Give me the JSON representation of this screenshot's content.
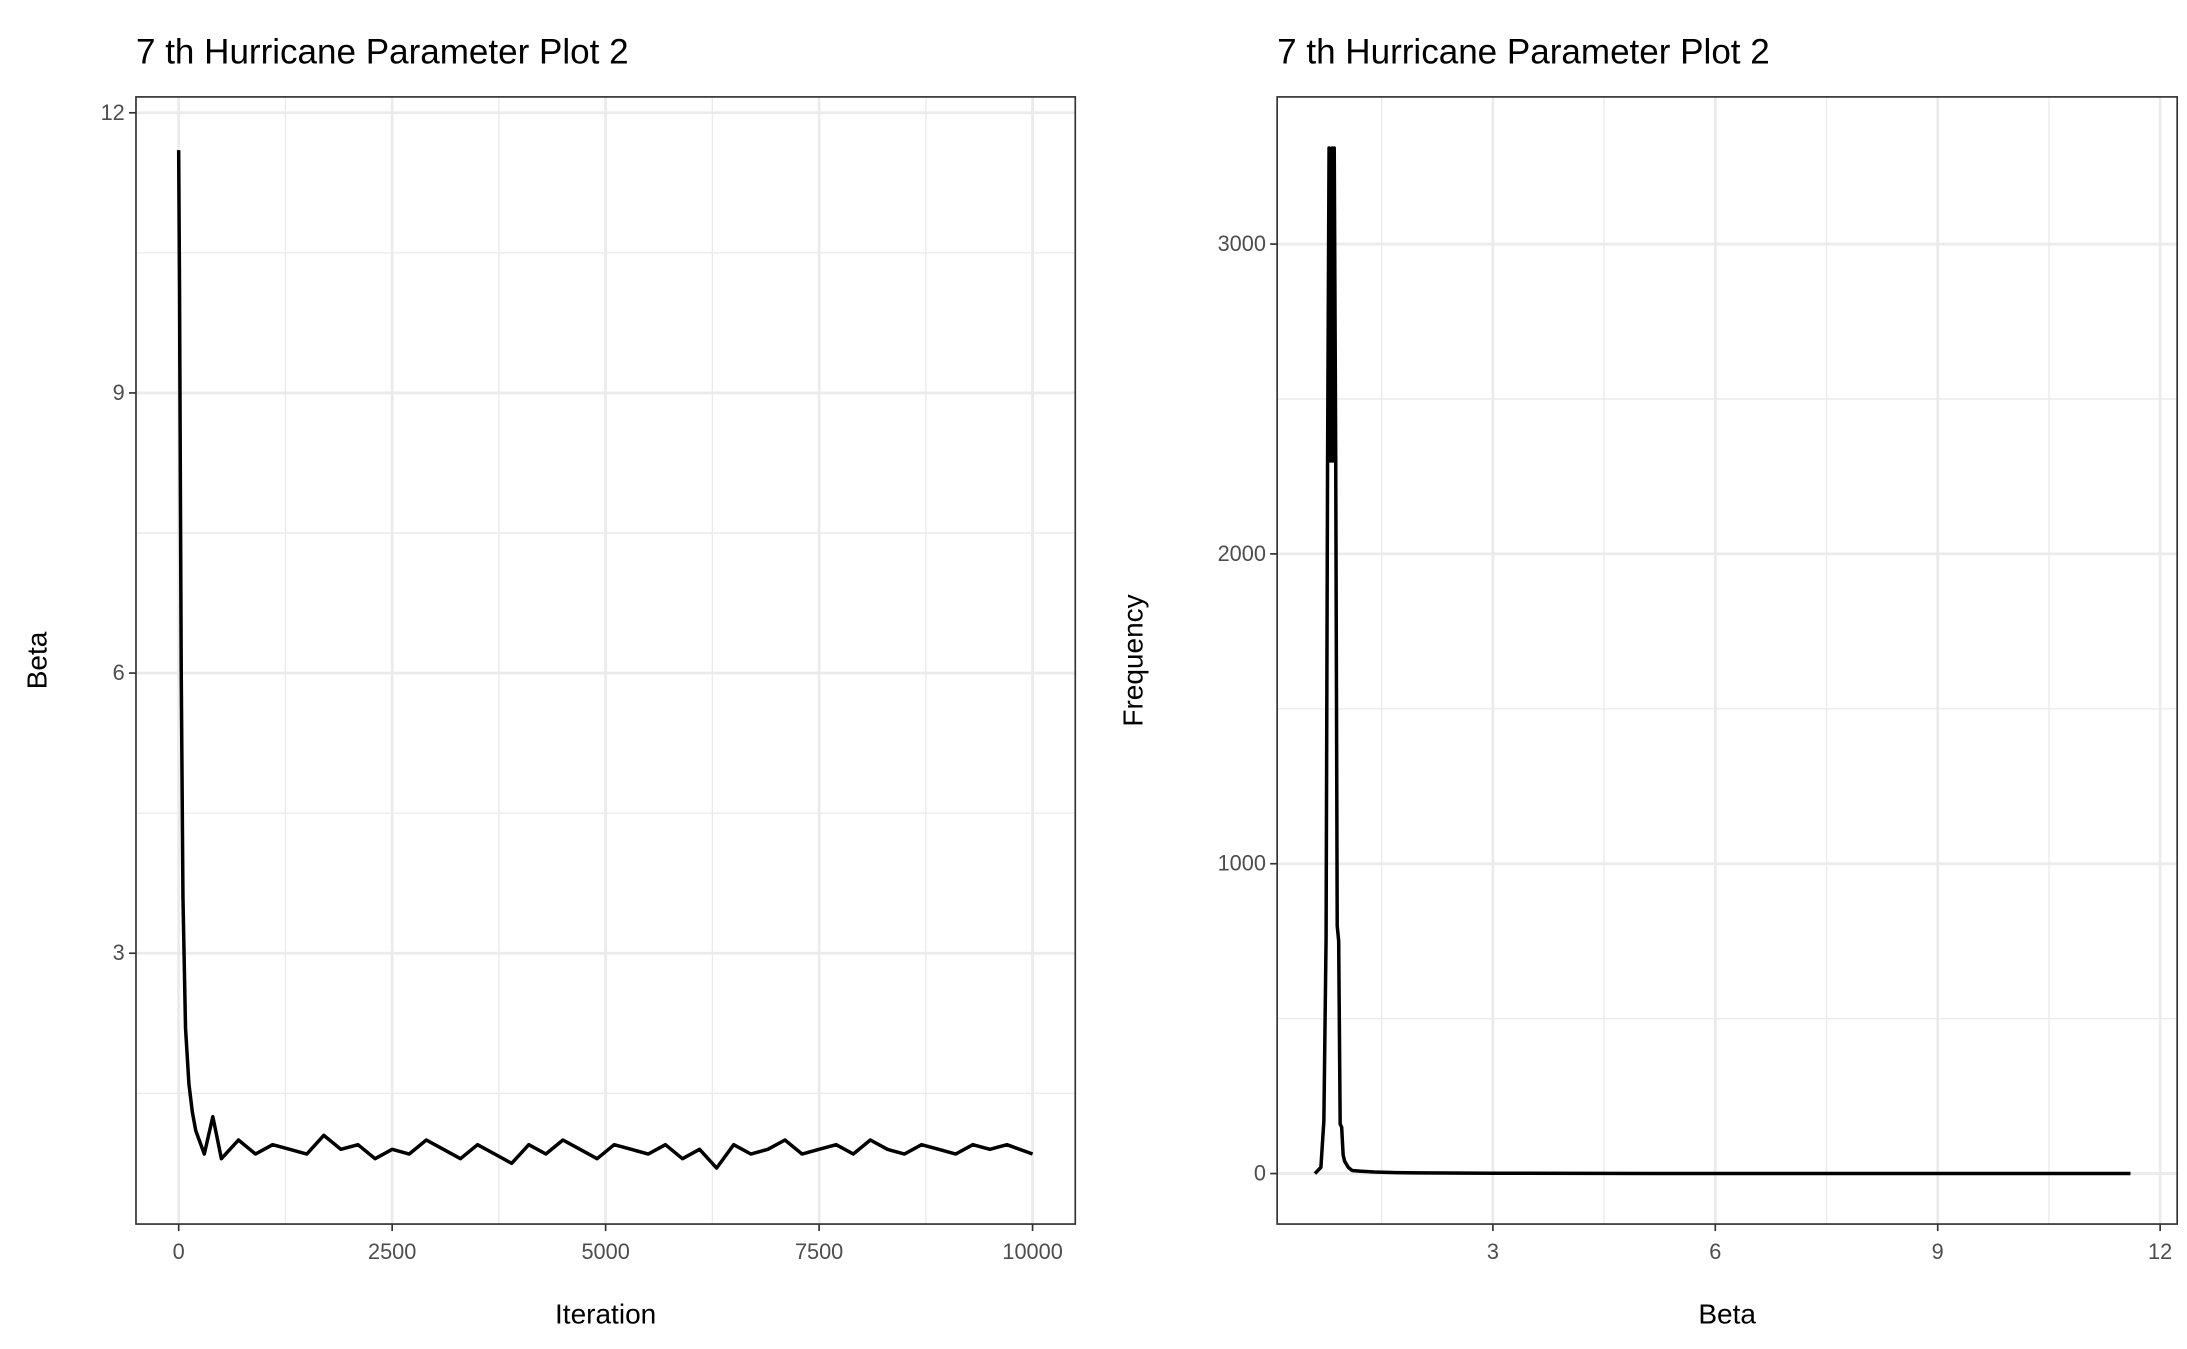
{
  "chart_data": [
    {
      "type": "line",
      "title": "7 th Hurricane Parameter Plot 2",
      "x_label": "Iteration",
      "y_label": "Beta",
      "xlim": [
        -500,
        10500
      ],
      "xticks": [
        0,
        2500,
        5000,
        7500,
        10000
      ],
      "xminor_ticks": [
        1250,
        3750,
        6250,
        8750
      ],
      "ylim": [
        0.1,
        12.17
      ],
      "yticks": [
        3,
        6,
        9,
        12
      ],
      "yminor_ticks": [
        1.5,
        4.5,
        7.5,
        10.5
      ],
      "grid": true,
      "series": [
        {
          "color": "#000000",
          "x": [
            0,
            10,
            20,
            30,
            50,
            80,
            120,
            160,
            200,
            300,
            400,
            500,
            700,
            900,
            1100,
            1300,
            1500,
            1700,
            1900,
            2100,
            2300,
            2500,
            2700,
            2900,
            3100,
            3300,
            3500,
            3700,
            3900,
            4100,
            4300,
            4500,
            4700,
            4900,
            5100,
            5300,
            5500,
            5700,
            5900,
            6100,
            6300,
            6500,
            6700,
            6900,
            7100,
            7300,
            7500,
            7700,
            7900,
            8100,
            8300,
            8500,
            8700,
            8900,
            9100,
            9300,
            9500,
            9700,
            10000
          ],
          "values": [
            11.6,
            10.1,
            8.0,
            6.0,
            3.6,
            2.2,
            1.6,
            1.3,
            1.1,
            0.85,
            1.25,
            0.8,
            1.0,
            0.85,
            0.95,
            0.9,
            0.85,
            1.05,
            0.9,
            0.95,
            0.8,
            0.9,
            0.85,
            1.0,
            0.9,
            0.8,
            0.95,
            0.85,
            0.75,
            0.95,
            0.85,
            1.0,
            0.9,
            0.8,
            0.95,
            0.9,
            0.85,
            0.95,
            0.8,
            0.9,
            0.7,
            0.95,
            0.85,
            0.9,
            1.0,
            0.85,
            0.9,
            0.95,
            0.85,
            1.0,
            0.9,
            0.85,
            0.95,
            0.9,
            0.85,
            0.95,
            0.9,
            0.95,
            0.85
          ]
        }
      ]
    },
    {
      "type": "line",
      "title": "7 th Hurricane Parameter Plot 2",
      "x_label": "Beta",
      "y_label": "Frequency",
      "xlim": [
        0.09,
        12.23
      ],
      "xticks": [
        3,
        6,
        9,
        12
      ],
      "xminor_ticks": [
        1.5,
        4.5,
        7.5,
        10.5
      ],
      "ylim": [
        -163,
        3475
      ],
      "yticks": [
        0,
        1000,
        2000,
        3000
      ],
      "yminor_ticks": [
        500,
        1500,
        2500
      ],
      "grid": true,
      "series": [
        {
          "color": "#000000",
          "x": [
            0.6,
            0.68,
            0.72,
            0.75,
            0.77,
            0.79,
            0.81,
            0.83,
            0.84,
            0.86,
            0.88,
            0.9,
            0.92,
            0.94,
            0.96,
            0.98,
            1.0,
            1.05,
            1.1,
            1.2,
            1.4,
            1.7,
            2.0,
            3.0,
            6.0,
            9.0,
            11.6
          ],
          "values": [
            0,
            20,
            170,
            760,
            2300,
            3310,
            2300,
            3310,
            2300,
            3310,
            2300,
            800,
            750,
            160,
            150,
            60,
            40,
            20,
            10,
            8,
            5,
            3,
            2,
            1,
            0,
            0,
            0
          ]
        }
      ]
    }
  ]
}
